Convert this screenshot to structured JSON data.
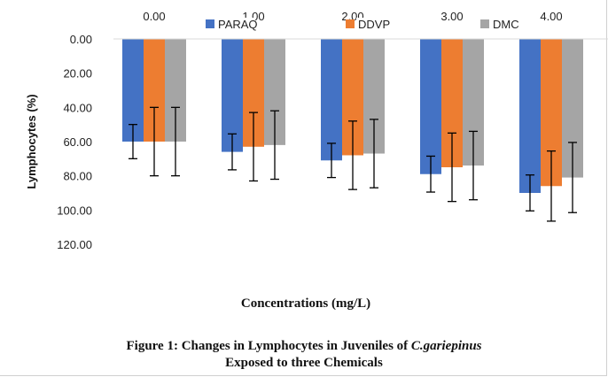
{
  "chart_data": {
    "type": "bar",
    "categories": [
      "0.00",
      "1.00",
      "2.00",
      "3.00",
      "4.00"
    ],
    "series": [
      {
        "name": "PARAQ",
        "color": "#4472c4",
        "values": [
          60.0,
          66.0,
          71.0,
          79.0,
          90.0
        ],
        "error": [
          10.0,
          10.5,
          10.0,
          10.5,
          10.5
        ]
      },
      {
        "name": "DDVP",
        "color": "#ed7d31",
        "values": [
          60.0,
          63.0,
          68.0,
          75.0,
          86.0
        ],
        "error": [
          20.0,
          20.0,
          20.0,
          20.0,
          20.5
        ]
      },
      {
        "name": "DMC",
        "color": "#a5a5a5",
        "values": [
          60.0,
          62.0,
          67.0,
          74.0,
          81.0
        ],
        "error": [
          20.0,
          20.0,
          20.0,
          20.0,
          20.5
        ]
      }
    ],
    "ylabel": "Lymphocytes (%)",
    "xlabel": "Concentrations  (mg/L)",
    "ylim": [
      0,
      120
    ],
    "yticks": [
      "0.00",
      "20.00",
      "40.00",
      "60.00",
      "80.00",
      "100.00",
      "120.00"
    ],
    "y_axis_inverted": true,
    "category_axis_position": "top",
    "legend_position": "top",
    "grid": false
  },
  "caption": {
    "line1_prefix": "Figure 1: Changes in Lymphocytes in Juveniles of ",
    "line1_italic": "C.gariepinus",
    "line2": "Exposed to three Chemicals"
  }
}
